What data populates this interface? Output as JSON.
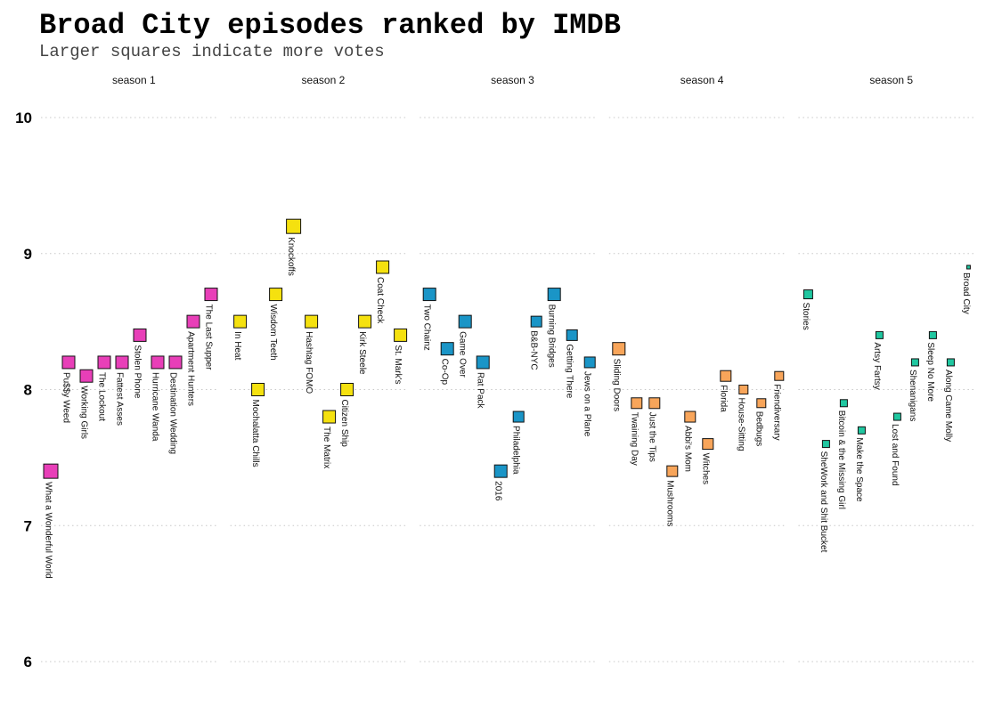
{
  "title": "Broad City episodes ranked by IMDB",
  "subtitle": "Larger squares indicate more votes",
  "chart_data": {
    "type": "scatter",
    "title": "Broad City episodes ranked by IMDB",
    "subtitle": "Larger squares indicate more votes",
    "xlabel": "",
    "ylabel": "",
    "ylim": [
      6,
      10
    ],
    "yticks": [
      "6",
      "7",
      "8",
      "9",
      "10"
    ],
    "grid": true,
    "legend": "none",
    "facets": [
      {
        "label": "season 1",
        "color": "#e83fb8",
        "episodes": [
          {
            "title": "What a Wonderful World",
            "rating": 7.4,
            "size": "large"
          },
          {
            "title": "Pu$$y Weed",
            "rating": 8.2,
            "size": "medium"
          },
          {
            "title": "Working Girls",
            "rating": 8.1,
            "size": "medium"
          },
          {
            "title": "The Lockout",
            "rating": 8.2,
            "size": "medium"
          },
          {
            "title": "Fattest Asses",
            "rating": 8.2,
            "size": "medium"
          },
          {
            "title": "Stolen Phone",
            "rating": 8.4,
            "size": "medium"
          },
          {
            "title": "Hurricane Wanda",
            "rating": 8.2,
            "size": "medium"
          },
          {
            "title": "Destination Wedding",
            "rating": 8.2,
            "size": "medium"
          },
          {
            "title": "Apartment Hunters",
            "rating": 8.5,
            "size": "medium"
          },
          {
            "title": "The Last Supper",
            "rating": 8.7,
            "size": "medium"
          }
        ]
      },
      {
        "label": "season 2",
        "color": "#f5e10f",
        "episodes": [
          {
            "title": "In Heat",
            "rating": 8.5,
            "size": "medium"
          },
          {
            "title": "Mochalatta Chills",
            "rating": 8.0,
            "size": "medium"
          },
          {
            "title": "Wisdom Teeth",
            "rating": 8.7,
            "size": "medium"
          },
          {
            "title": "Knockoffs",
            "rating": 9.2,
            "size": "large"
          },
          {
            "title": "Hashtag FOMO",
            "rating": 8.5,
            "size": "medium"
          },
          {
            "title": "The Matrix",
            "rating": 7.8,
            "size": "medium"
          },
          {
            "title": "Citizen Ship",
            "rating": 8.0,
            "size": "medium"
          },
          {
            "title": "Kirk Steele",
            "rating": 8.5,
            "size": "medium"
          },
          {
            "title": "Coat Check",
            "rating": 8.9,
            "size": "medium"
          },
          {
            "title": "St. Mark's",
            "rating": 8.4,
            "size": "medium"
          }
        ]
      },
      {
        "label": "season 3",
        "color": "#1a95c7",
        "episodes": [
          {
            "title": "Two Chainz",
            "rating": 8.7,
            "size": "medium"
          },
          {
            "title": "Co-Op",
            "rating": 8.3,
            "size": "medium"
          },
          {
            "title": "Game Over",
            "rating": 8.5,
            "size": "medium"
          },
          {
            "title": "Rat Pack",
            "rating": 8.2,
            "size": "medium"
          },
          {
            "title": "2016",
            "rating": 7.4,
            "size": "medium"
          },
          {
            "title": "Philadelphia",
            "rating": 7.8,
            "size": "small"
          },
          {
            "title": "B&B-NYC",
            "rating": 8.5,
            "size": "small"
          },
          {
            "title": "Burning Bridges",
            "rating": 8.7,
            "size": "medium"
          },
          {
            "title": "Getting There",
            "rating": 8.4,
            "size": "small"
          },
          {
            "title": "Jews on a Plane",
            "rating": 8.2,
            "size": "small"
          }
        ]
      },
      {
        "label": "season 4",
        "color": "#f8a55a",
        "episodes": [
          {
            "title": "Sliding Doors",
            "rating": 8.3,
            "size": "medium"
          },
          {
            "title": "Twaining Day",
            "rating": 7.9,
            "size": "small"
          },
          {
            "title": "Just the Tips",
            "rating": 7.9,
            "size": "small"
          },
          {
            "title": "Mushrooms",
            "rating": 7.4,
            "size": "small"
          },
          {
            "title": "Abbi's Mom",
            "rating": 7.8,
            "size": "small"
          },
          {
            "title": "Witches",
            "rating": 7.6,
            "size": "small"
          },
          {
            "title": "Florida",
            "rating": 8.1,
            "size": "small"
          },
          {
            "title": "House-Sitting",
            "rating": 8.0,
            "size": "xsmall"
          },
          {
            "title": "Bedbugs",
            "rating": 7.9,
            "size": "xsmall"
          },
          {
            "title": "Friendiversary",
            "rating": 8.1,
            "size": "xsmall"
          }
        ]
      },
      {
        "label": "season 5",
        "color": "#1fc7a0",
        "episodes": [
          {
            "title": "Stories",
            "rating": 8.7,
            "size": "xsmall"
          },
          {
            "title": "SheWork and Shit Bucket",
            "rating": 7.6,
            "size": "tiny"
          },
          {
            "title": "Bitcoin & the Missing Girl",
            "rating": 7.9,
            "size": "tiny"
          },
          {
            "title": "Make the Space",
            "rating": 7.7,
            "size": "tiny"
          },
          {
            "title": "Artsy Fartsy",
            "rating": 8.4,
            "size": "tiny"
          },
          {
            "title": "Lost and Found",
            "rating": 7.8,
            "size": "tiny"
          },
          {
            "title": "Shenanigans",
            "rating": 8.2,
            "size": "tiny"
          },
          {
            "title": "Sleep No More",
            "rating": 8.4,
            "size": "tiny"
          },
          {
            "title": "Along Came Molly",
            "rating": 8.2,
            "size": "tiny"
          },
          {
            "title": "Broad City",
            "rating": 8.9,
            "size": "micro"
          }
        ]
      }
    ]
  }
}
